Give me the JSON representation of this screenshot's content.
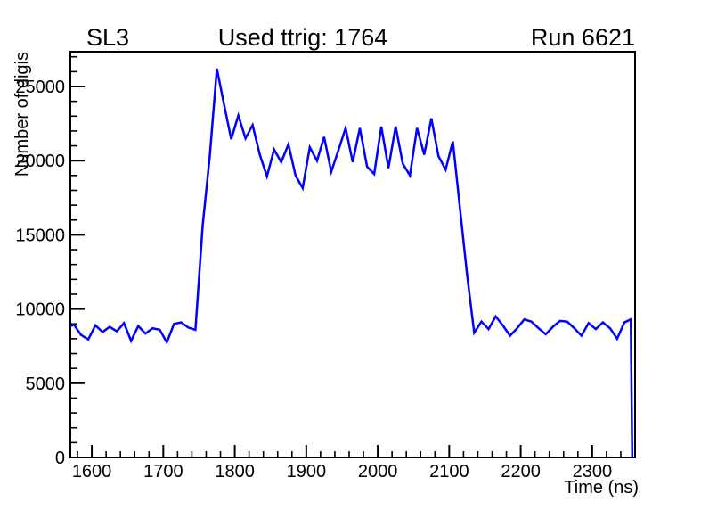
{
  "chart_data": {
    "type": "line",
    "titles": {
      "left": "SL3",
      "center": "Used ttrig: 1764",
      "right": "Run 6621"
    },
    "xlabel": "Time (ns)",
    "ylabel": "Number of digis",
    "xlim": [
      1570,
      2360
    ],
    "ylim": [
      0,
      27344
    ],
    "x_major_ticks": [
      1600,
      1700,
      1800,
      1900,
      2000,
      2100,
      2200,
      2300
    ],
    "x_minor_step": 20,
    "y_major_ticks": [
      0,
      5000,
      10000,
      15000,
      20000,
      25000
    ],
    "y_minor_step": 1000,
    "grid": "off",
    "legend": "none",
    "line_color": "#0000ff",
    "axis_color": "#000000",
    "points": [
      [
        1570,
        8850
      ],
      [
        1575,
        8950
      ],
      [
        1585,
        8250
      ],
      [
        1595,
        7950
      ],
      [
        1605,
        8900
      ],
      [
        1615,
        8450
      ],
      [
        1625,
        8800
      ],
      [
        1635,
        8500
      ],
      [
        1645,
        9050
      ],
      [
        1655,
        7850
      ],
      [
        1665,
        8850
      ],
      [
        1675,
        8350
      ],
      [
        1685,
        8700
      ],
      [
        1695,
        8600
      ],
      [
        1705,
        7750
      ],
      [
        1715,
        9000
      ],
      [
        1725,
        9100
      ],
      [
        1735,
        8750
      ],
      [
        1745,
        8600
      ],
      [
        1755,
        15600
      ],
      [
        1765,
        20300
      ],
      [
        1775,
        26200
      ],
      [
        1785,
        23800
      ],
      [
        1795,
        21450
      ],
      [
        1805,
        23050
      ],
      [
        1815,
        21500
      ],
      [
        1825,
        22400
      ],
      [
        1835,
        20400
      ],
      [
        1845,
        18950
      ],
      [
        1855,
        20750
      ],
      [
        1865,
        19900
      ],
      [
        1875,
        21100
      ],
      [
        1885,
        19000
      ],
      [
        1895,
        18150
      ],
      [
        1905,
        20900
      ],
      [
        1915,
        20000
      ],
      [
        1925,
        21600
      ],
      [
        1935,
        19250
      ],
      [
        1945,
        20700
      ],
      [
        1955,
        22200
      ],
      [
        1965,
        19900
      ],
      [
        1975,
        22200
      ],
      [
        1985,
        19600
      ],
      [
        1995,
        19100
      ],
      [
        2005,
        22300
      ],
      [
        2015,
        19500
      ],
      [
        2025,
        22300
      ],
      [
        2035,
        19800
      ],
      [
        2045,
        19000
      ],
      [
        2055,
        22200
      ],
      [
        2065,
        20400
      ],
      [
        2075,
        22850
      ],
      [
        2085,
        20300
      ],
      [
        2095,
        19400
      ],
      [
        2105,
        21300
      ],
      [
        2115,
        16800
      ],
      [
        2125,
        12300
      ],
      [
        2135,
        8400
      ],
      [
        2145,
        9150
      ],
      [
        2155,
        8650
      ],
      [
        2165,
        9500
      ],
      [
        2175,
        8900
      ],
      [
        2185,
        8200
      ],
      [
        2195,
        8700
      ],
      [
        2205,
        9300
      ],
      [
        2215,
        9150
      ],
      [
        2225,
        8700
      ],
      [
        2235,
        8300
      ],
      [
        2245,
        8800
      ],
      [
        2255,
        9200
      ],
      [
        2265,
        9150
      ],
      [
        2275,
        8700
      ],
      [
        2285,
        8200
      ],
      [
        2295,
        9050
      ],
      [
        2305,
        8650
      ],
      [
        2315,
        9100
      ],
      [
        2325,
        8700
      ],
      [
        2335,
        8000
      ],
      [
        2345,
        9100
      ],
      [
        2354,
        9300
      ],
      [
        2356,
        0
      ]
    ]
  }
}
